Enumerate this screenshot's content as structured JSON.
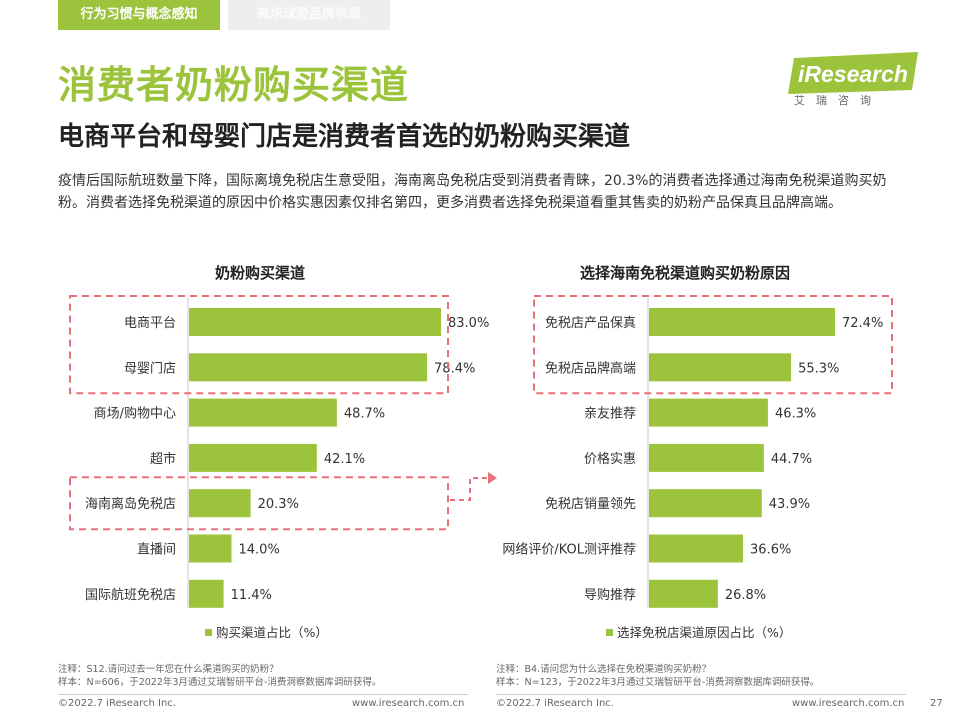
{
  "tabs": [
    {
      "label": "行为习惯与概念感知"
    },
    {
      "label": "高培球爱品牌表现"
    }
  ],
  "logo": {
    "text": "iResearch",
    "sub": "艾瑞咨询"
  },
  "title": "消费者奶粉购买渠道",
  "subtitle": "电商平台和母婴门店是消费者首选的奶粉购买渠道",
  "description": "疫情后国际航班数量下降，国际离境免税店生意受阻，海南离岛免税店受到消费者青睐，20.3%的消费者选择通过海南免税渠道购买奶粉。消费者选择免税渠道的原因中价格实惠因素仅排名第四，更多消费者选择免税渠道看重其售卖的奶粉产品保真且品牌高端。",
  "colors": {
    "accent": "#9bc43c",
    "highlight_box": "#e8707a"
  },
  "chart_data": [
    {
      "type": "bar",
      "orientation": "horizontal",
      "title": "奶粉购买渠道",
      "categories": [
        "电商平台",
        "母婴门店",
        "商场/购物中心",
        "超市",
        "海南离岛免税店",
        "直播间",
        "国际航班免税店"
      ],
      "series": [
        {
          "name": "购买渠道占比（%）",
          "values": [
            83.0,
            78.4,
            48.7,
            42.1,
            20.3,
            14.0,
            11.4
          ]
        }
      ],
      "value_labels": [
        "83.0%",
        "78.4%",
        "48.7%",
        "42.1%",
        "20.3%",
        "14.0%",
        "11.4%"
      ],
      "highlighted_groups": [
        [
          "电商平台",
          "母婴门店"
        ],
        [
          "海南离岛免税店"
        ]
      ],
      "legend": "bottom"
    },
    {
      "type": "bar",
      "orientation": "horizontal",
      "title": "选择海南免税渠道购买奶粉原因",
      "categories": [
        "免税店产品保真",
        "免税店品牌高端",
        "亲友推荐",
        "价格实惠",
        "免税店销量领先",
        "网络评价/KOL测评推荐",
        "导购推荐"
      ],
      "series": [
        {
          "name": "选择免税店渠道原因占比（%）",
          "values": [
            72.4,
            55.3,
            46.3,
            44.7,
            43.9,
            36.6,
            26.8
          ]
        }
      ],
      "value_labels": [
        "72.4%",
        "55.3%",
        "46.3%",
        "44.7%",
        "43.9%",
        "36.6%",
        "26.8%"
      ],
      "highlighted_groups": [
        [
          "免税店产品保真",
          "免税店品牌高端"
        ]
      ],
      "legend": "bottom"
    }
  ],
  "notes": {
    "left": [
      "注释：S12.请问过去一年您在什么渠道购买的奶粉？",
      "样本：N=606，于2022年3月通过艾瑞智研平台-消费洞察数据库调研获得。"
    ],
    "right": [
      "注释：B4.请问您为什么选择在免税渠道购买奶粉？",
      "样本：N=123，于2022年3月通过艾瑞智研平台-消费洞察数据库调研获得。"
    ]
  },
  "footer": {
    "copyright": "©2022.7 iResearch Inc.",
    "website": "www.iresearch.com.cn",
    "page": "27"
  }
}
